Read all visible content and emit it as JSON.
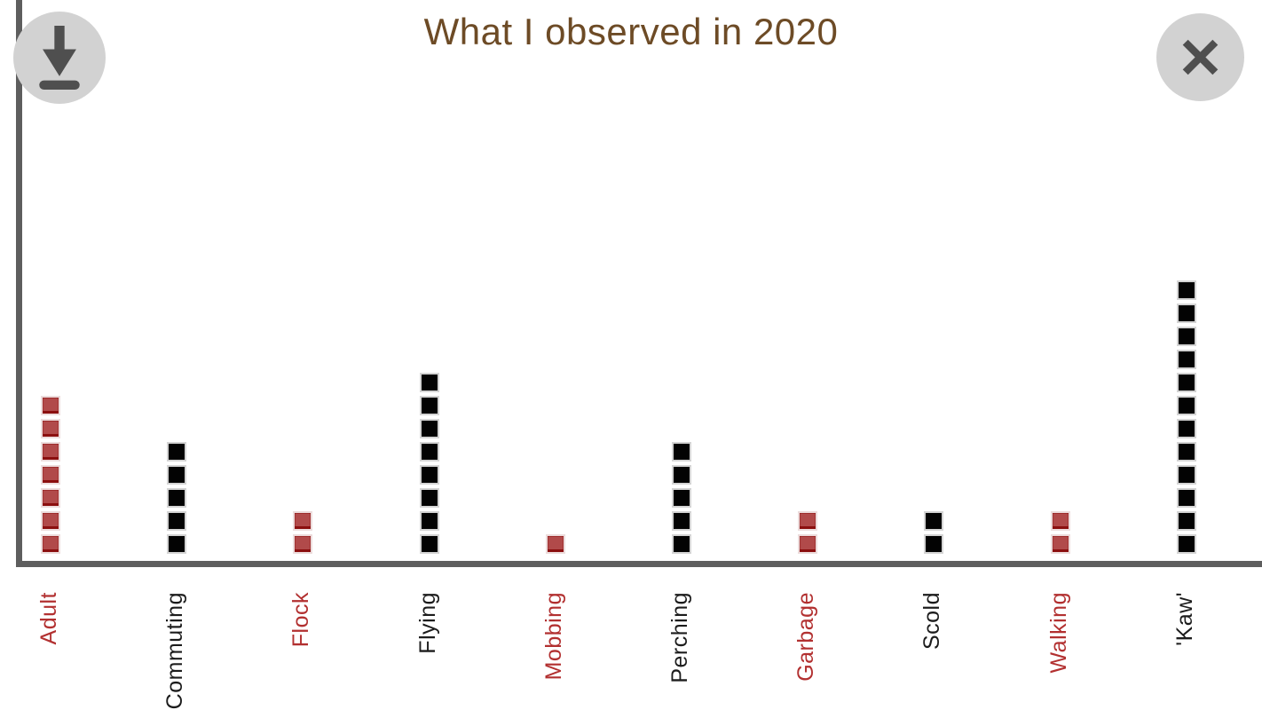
{
  "header": {
    "title": "What I observed in 2020"
  },
  "buttons": {
    "download": "download-icon",
    "close": "close-icon"
  },
  "colors": {
    "title_text": "#6D4B26",
    "axis": "#5E5E5E",
    "square_black": "#030303",
    "square_black_edge": "#D4D4D4",
    "square_red": "#B14A4A",
    "square_red_dark": "#8B0F0F",
    "square_red_edge": "#ECDCDC",
    "label_red": "#B23030",
    "label_black": "#1C1C1C",
    "button_circle": "#D2D2D2",
    "button_glyph": "#4F4F4F"
  },
  "chart_data": {
    "type": "bar",
    "subtype": "unit-square-stack",
    "title": "What I observed in 2020",
    "orientation": "vertical",
    "grid": false,
    "legend": "none",
    "xlabel": "",
    "ylabel": "",
    "ylim": [
      0,
      12
    ],
    "categories": [
      "Adult",
      "Commuting",
      "Flock",
      "Flying",
      "Mobbing",
      "Perching",
      "Garbage",
      "Scold",
      "Walking",
      "'Kaw'"
    ],
    "values": [
      7,
      5,
      2,
      8,
      1,
      5,
      2,
      2,
      2,
      12
    ],
    "bar_colors": [
      "red",
      "black",
      "red",
      "black",
      "red",
      "black",
      "red",
      "black",
      "red",
      "black"
    ]
  }
}
